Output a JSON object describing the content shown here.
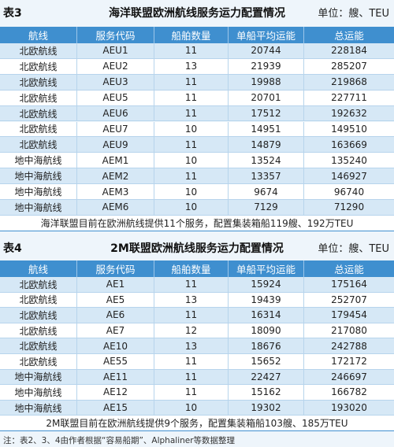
{
  "tables": [
    {
      "label": "表3",
      "title": "海洋联盟欧洲航线服务运力配置情况",
      "unit": "单位：艘、TEU",
      "headers": [
        "航线",
        "服务代码",
        "船舶数量",
        "单船平均运能",
        "总运能"
      ],
      "rows": [
        [
          "北欧航线",
          "AEU1",
          11,
          20744,
          228184
        ],
        [
          "北欧航线",
          "AEU2",
          13,
          21939,
          285207
        ],
        [
          "北欧航线",
          "AEU3",
          11,
          19988,
          219868
        ],
        [
          "北欧航线",
          "AEU5",
          11,
          20701,
          227711
        ],
        [
          "北欧航线",
          "AEU6",
          11,
          17512,
          192632
        ],
        [
          "北欧航线",
          "AEU7",
          10,
          14951,
          149510
        ],
        [
          "北欧航线",
          "AEU9",
          11,
          14879,
          163669
        ],
        [
          "地中海航线",
          "AEM1",
          10,
          13524,
          135240
        ],
        [
          "地中海航线",
          "AEM2",
          11,
          13357,
          146927
        ],
        [
          "地中海航线",
          "AEM3",
          10,
          9674,
          96740
        ],
        [
          "地中海航线",
          "AEM6",
          10,
          7129,
          71290
        ]
      ],
      "footer": "海洋联盟目前在欧洲航线提供11个服务，配置集装箱船119艘、192万TEU"
    },
    {
      "label": "表4",
      "title": "2M联盟欧洲航线服务运力配置情况",
      "unit": "单位：艘、TEU",
      "headers": [
        "航线",
        "服务代码",
        "船舶数量",
        "单船平均运能",
        "总运能"
      ],
      "rows": [
        [
          "北欧航线",
          "AE1",
          11,
          15924,
          175164
        ],
        [
          "北欧航线",
          "AE5",
          13,
          19439,
          252707
        ],
        [
          "北欧航线",
          "AE6",
          11,
          16314,
          179454
        ],
        [
          "北欧航线",
          "AE7",
          12,
          18090,
          217080
        ],
        [
          "北欧航线",
          "AE10",
          13,
          18676,
          242788
        ],
        [
          "北欧航线",
          "AE55",
          11,
          15652,
          172172
        ],
        [
          "地中海航线",
          "AE11",
          11,
          22427,
          246697
        ],
        [
          "地中海航线",
          "AE12",
          11,
          15162,
          166782
        ],
        [
          "地中海航线",
          "AE15",
          10,
          19302,
          193020
        ]
      ],
      "footer": "2M联盟目前在欧洲航线提供9个服务，配置集装箱船103艘、185万TEU"
    }
  ],
  "note": "注：表2、3、4由作者根据“容易船期”、Alphaliner等数据整理"
}
